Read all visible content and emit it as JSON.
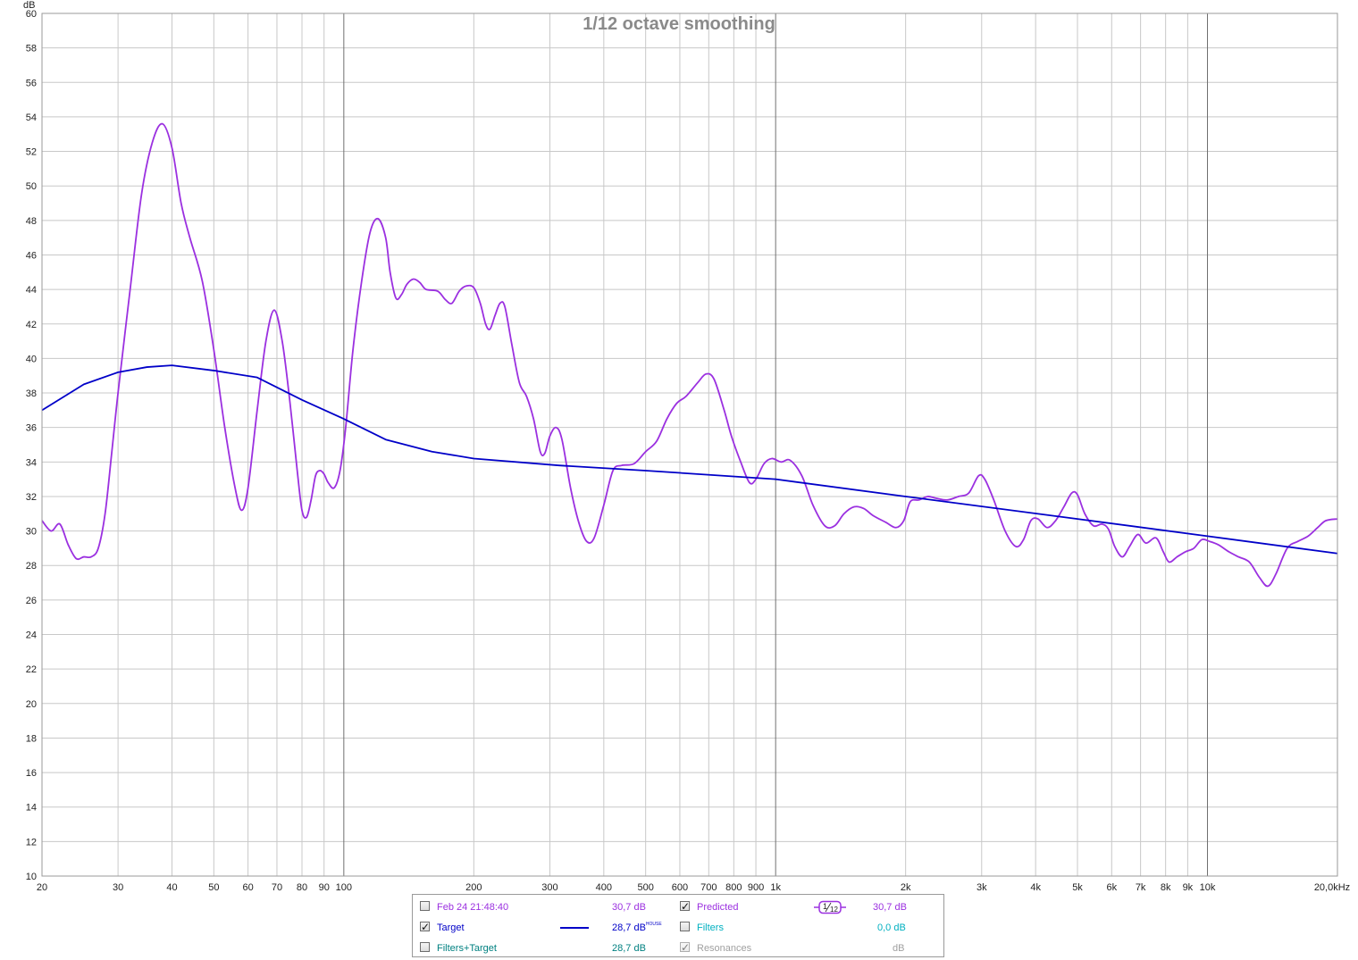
{
  "chart_data": {
    "type": "line",
    "title": "1/12 octave smoothing",
    "ylabel": "dB",
    "xlabel": "",
    "x_scale": "log",
    "xlim": [
      20,
      20000
    ],
    "ylim": [
      10,
      60
    ],
    "grid": true,
    "y_ticks": [
      "10",
      "12",
      "14",
      "16",
      "18",
      "20",
      "22",
      "24",
      "26",
      "28",
      "30",
      "32",
      "34",
      "36",
      "38",
      "40",
      "42",
      "44",
      "46",
      "48",
      "50",
      "52",
      "54",
      "56",
      "58",
      "60"
    ],
    "x_ticks": [
      {
        "value": 20,
        "label": "20"
      },
      {
        "value": 30,
        "label": "30"
      },
      {
        "value": 40,
        "label": "40"
      },
      {
        "value": 50,
        "label": "50"
      },
      {
        "value": 60,
        "label": "60"
      },
      {
        "value": 70,
        "label": "70"
      },
      {
        "value": 80,
        "label": "80"
      },
      {
        "value": 90,
        "label": "90"
      },
      {
        "value": 100,
        "label": "100"
      },
      {
        "value": 200,
        "label": "200"
      },
      {
        "value": 300,
        "label": "300"
      },
      {
        "value": 400,
        "label": "400"
      },
      {
        "value": 500,
        "label": "500"
      },
      {
        "value": 600,
        "label": "600"
      },
      {
        "value": 700,
        "label": "700"
      },
      {
        "value": 800,
        "label": "800"
      },
      {
        "value": 900,
        "label": "900"
      },
      {
        "value": 1000,
        "label": "1k"
      },
      {
        "value": 2000,
        "label": "2k"
      },
      {
        "value": 3000,
        "label": "3k"
      },
      {
        "value": 4000,
        "label": "4k"
      },
      {
        "value": 5000,
        "label": "5k"
      },
      {
        "value": 6000,
        "label": "6k"
      },
      {
        "value": 7000,
        "label": "7k"
      },
      {
        "value": 8000,
        "label": "8k"
      },
      {
        "value": 9000,
        "label": "9k"
      },
      {
        "value": 10000,
        "label": "10k"
      },
      {
        "value": 20000,
        "label": "20,0kHz"
      }
    ],
    "series": [
      {
        "name": "Predicted",
        "color": "#9b30e0",
        "points": [
          [
            20,
            30.6
          ],
          [
            21,
            30.0
          ],
          [
            22,
            30.4
          ],
          [
            23,
            29.2
          ],
          [
            24,
            28.4
          ],
          [
            25,
            28.5
          ],
          [
            26,
            28.5
          ],
          [
            27,
            29.0
          ],
          [
            28,
            31.0
          ],
          [
            29,
            34.5
          ],
          [
            30,
            38.0
          ],
          [
            32,
            44.0
          ],
          [
            34,
            49.5
          ],
          [
            36,
            52.5
          ],
          [
            38,
            53.6
          ],
          [
            40,
            52.2
          ],
          [
            42,
            49.0
          ],
          [
            44,
            47.0
          ],
          [
            47,
            44.5
          ],
          [
            50,
            40.5
          ],
          [
            53,
            36.0
          ],
          [
            56,
            32.5
          ],
          [
            58,
            31.2
          ],
          [
            60,
            32.5
          ],
          [
            63,
            37.0
          ],
          [
            66,
            41.0
          ],
          [
            69,
            42.8
          ],
          [
            72,
            41.0
          ],
          [
            75,
            37.5
          ],
          [
            78,
            33.5
          ],
          [
            80,
            31.2
          ],
          [
            82,
            30.8
          ],
          [
            84,
            31.8
          ],
          [
            86,
            33.2
          ],
          [
            88,
            33.5
          ],
          [
            90,
            33.3
          ],
          [
            92,
            32.8
          ],
          [
            95,
            32.5
          ],
          [
            98,
            33.5
          ],
          [
            101,
            36.0
          ],
          [
            105,
            40.5
          ],
          [
            110,
            44.5
          ],
          [
            115,
            47.3
          ],
          [
            120,
            48.1
          ],
          [
            125,
            47.0
          ],
          [
            128,
            45.0
          ],
          [
            132,
            43.5
          ],
          [
            136,
            43.7
          ],
          [
            140,
            44.3
          ],
          [
            145,
            44.6
          ],
          [
            150,
            44.4
          ],
          [
            155,
            44.0
          ],
          [
            165,
            43.9
          ],
          [
            172,
            43.4
          ],
          [
            178,
            43.2
          ],
          [
            185,
            43.9
          ],
          [
            192,
            44.2
          ],
          [
            200,
            44.1
          ],
          [
            207,
            43.2
          ],
          [
            213,
            42.0
          ],
          [
            218,
            41.7
          ],
          [
            224,
            42.5
          ],
          [
            230,
            43.2
          ],
          [
            236,
            43.0
          ],
          [
            245,
            40.8
          ],
          [
            255,
            38.6
          ],
          [
            265,
            37.8
          ],
          [
            275,
            36.5
          ],
          [
            285,
            34.6
          ],
          [
            292,
            34.5
          ],
          [
            300,
            35.5
          ],
          [
            310,
            36.0
          ],
          [
            320,
            35.3
          ],
          [
            335,
            32.5
          ],
          [
            350,
            30.5
          ],
          [
            365,
            29.4
          ],
          [
            380,
            29.6
          ],
          [
            400,
            31.5
          ],
          [
            420,
            33.5
          ],
          [
            440,
            33.8
          ],
          [
            470,
            33.9
          ],
          [
            500,
            34.6
          ],
          [
            530,
            35.2
          ],
          [
            560,
            36.5
          ],
          [
            590,
            37.4
          ],
          [
            620,
            37.8
          ],
          [
            660,
            38.6
          ],
          [
            690,
            39.1
          ],
          [
            720,
            38.8
          ],
          [
            760,
            37.0
          ],
          [
            790,
            35.5
          ],
          [
            830,
            34.0
          ],
          [
            870,
            32.8
          ],
          [
            900,
            33.0
          ],
          [
            940,
            33.9
          ],
          [
            980,
            34.2
          ],
          [
            1030,
            34.0
          ],
          [
            1080,
            34.1
          ],
          [
            1150,
            33.2
          ],
          [
            1220,
            31.5
          ],
          [
            1300,
            30.3
          ],
          [
            1370,
            30.3
          ],
          [
            1440,
            31.0
          ],
          [
            1520,
            31.4
          ],
          [
            1600,
            31.3
          ],
          [
            1680,
            30.9
          ],
          [
            1800,
            30.5
          ],
          [
            1900,
            30.2
          ],
          [
            1980,
            30.6
          ],
          [
            2050,
            31.7
          ],
          [
            2150,
            31.8
          ],
          [
            2250,
            32.0
          ],
          [
            2350,
            31.9
          ],
          [
            2500,
            31.8
          ],
          [
            2650,
            32.0
          ],
          [
            2800,
            32.2
          ],
          [
            2950,
            33.2
          ],
          [
            3050,
            33.0
          ],
          [
            3200,
            31.8
          ],
          [
            3400,
            30.0
          ],
          [
            3600,
            29.1
          ],
          [
            3750,
            29.5
          ],
          [
            3900,
            30.6
          ],
          [
            4050,
            30.7
          ],
          [
            4250,
            30.2
          ],
          [
            4450,
            30.6
          ],
          [
            4650,
            31.4
          ],
          [
            4850,
            32.2
          ],
          [
            5000,
            32.1
          ],
          [
            5200,
            31.0
          ],
          [
            5450,
            30.3
          ],
          [
            5700,
            30.4
          ],
          [
            5900,
            30.1
          ],
          [
            6100,
            29.1
          ],
          [
            6350,
            28.5
          ],
          [
            6600,
            29.1
          ],
          [
            6900,
            29.8
          ],
          [
            7200,
            29.3
          ],
          [
            7600,
            29.6
          ],
          [
            7900,
            28.8
          ],
          [
            8150,
            28.2
          ],
          [
            8500,
            28.5
          ],
          [
            8900,
            28.8
          ],
          [
            9300,
            29.0
          ],
          [
            9700,
            29.5
          ],
          [
            10100,
            29.4
          ],
          [
            10600,
            29.2
          ],
          [
            11200,
            28.8
          ],
          [
            11800,
            28.5
          ],
          [
            12500,
            28.2
          ],
          [
            13200,
            27.3
          ],
          [
            13800,
            26.8
          ],
          [
            14400,
            27.5
          ],
          [
            15300,
            29.0
          ],
          [
            16200,
            29.4
          ],
          [
            17100,
            29.7
          ],
          [
            18000,
            30.2
          ],
          [
            18800,
            30.6
          ],
          [
            20000,
            30.7
          ]
        ]
      },
      {
        "name": "Target",
        "color": "#0000c8",
        "points": [
          [
            20,
            37.0
          ],
          [
            25,
            38.5
          ],
          [
            30,
            39.2
          ],
          [
            35,
            39.5
          ],
          [
            40,
            39.6
          ],
          [
            50,
            39.3
          ],
          [
            63,
            38.9
          ],
          [
            80,
            37.6
          ],
          [
            100,
            36.5
          ],
          [
            125,
            35.3
          ],
          [
            160,
            34.6
          ],
          [
            200,
            34.2
          ],
          [
            315,
            33.8
          ],
          [
            500,
            33.5
          ],
          [
            1000,
            33.0
          ],
          [
            2000,
            32.0
          ],
          [
            5000,
            30.7
          ],
          [
            10000,
            29.7
          ],
          [
            20000,
            28.7
          ]
        ]
      }
    ]
  },
  "legend": {
    "rows": [
      {
        "left": {
          "label": "Feb 24 21:48:40",
          "checked": false,
          "value": "30,7 dB",
          "color": "#9b30e0"
        },
        "right": {
          "label": "Predicted",
          "checked": true,
          "value": "30,7 dB",
          "color": "#9b30e0",
          "smoothing_num": "1",
          "smoothing_den": "12"
        }
      },
      {
        "left": {
          "label": "Target",
          "checked": true,
          "value": "28,7 dB",
          "value_sup": "HOUSE",
          "color": "#0000c8"
        },
        "right": {
          "label": "Filters",
          "checked": false,
          "value": "0,0 dB",
          "color": "#00b0c0"
        }
      },
      {
        "left": {
          "label": "Filters+Target",
          "checked": false,
          "value": "28,7 dB",
          "color": "#008080"
        },
        "right": {
          "label": "Resonances",
          "checked": true,
          "disabled": true,
          "value": "dB",
          "color": "#a0a0a0"
        }
      }
    ]
  }
}
